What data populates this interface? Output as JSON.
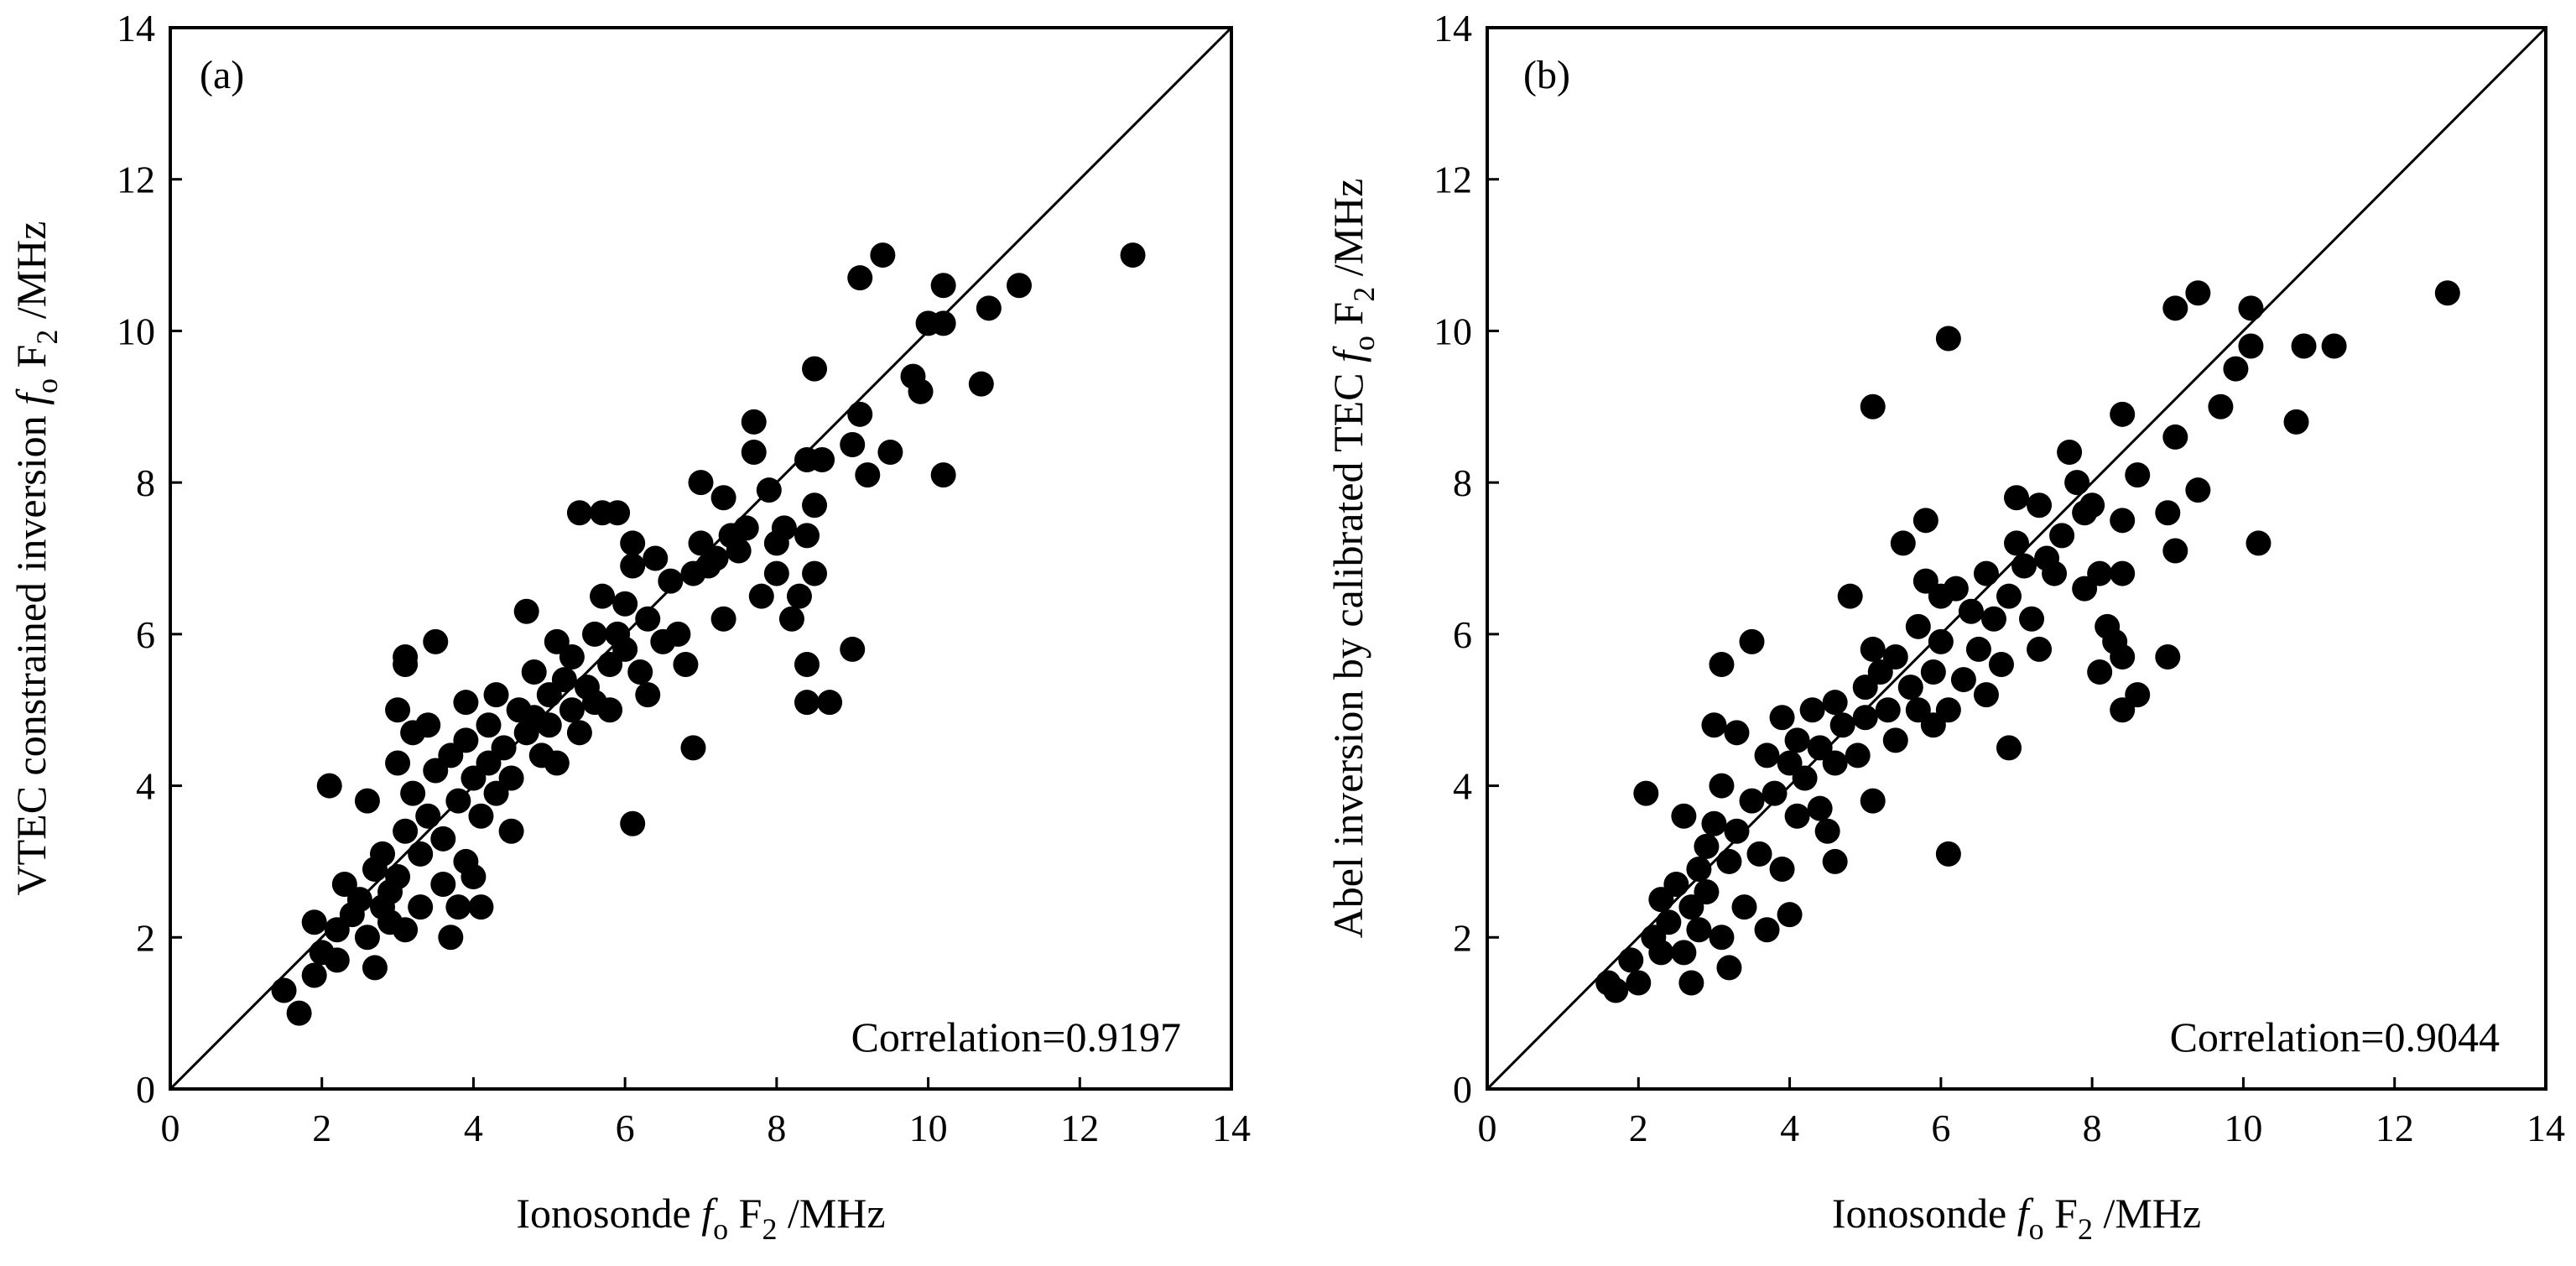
{
  "chart_data": [
    {
      "type": "scatter",
      "panel_label": "(a)",
      "annotation": "Correlation=0.9197",
      "xlabel": {
        "prefix": "Ionosonde ",
        "italic": "f",
        "sub1": "o",
        "mid": " F",
        "sub2": "2",
        "suffix": " /MHz"
      },
      "ylabel": {
        "prefix": "VTEC constrained inversion ",
        "italic": "f",
        "sub1": "o",
        "mid": " F",
        "sub2": "2",
        "suffix": " /MHz"
      },
      "xlim": [
        0,
        14
      ],
      "ylim": [
        0,
        14
      ],
      "xticks": [
        "0",
        "2",
        "4",
        "6",
        "8",
        "10",
        "12",
        "14"
      ],
      "yticks": [
        "0",
        "2",
        "4",
        "6",
        "8",
        "10",
        "12",
        "14"
      ],
      "reference_line": "y = x",
      "grid": false,
      "marker_color": "#000000",
      "points": [
        [
          1.5,
          1.3
        ],
        [
          1.7,
          1.0
        ],
        [
          1.9,
          1.5
        ],
        [
          1.9,
          2.2
        ],
        [
          2.0,
          1.8
        ],
        [
          2.1,
          4.0
        ],
        [
          2.2,
          1.7
        ],
        [
          2.2,
          2.1
        ],
        [
          2.3,
          2.7
        ],
        [
          2.4,
          2.3
        ],
        [
          2.5,
          2.5
        ],
        [
          2.6,
          2.0
        ],
        [
          2.6,
          3.8
        ],
        [
          2.7,
          1.6
        ],
        [
          2.7,
          2.9
        ],
        [
          2.8,
          2.4
        ],
        [
          2.8,
          3.1
        ],
        [
          2.9,
          2.2
        ],
        [
          2.9,
          2.6
        ],
        [
          3.0,
          4.3
        ],
        [
          3.0,
          5.0
        ],
        [
          3.0,
          2.8
        ],
        [
          3.1,
          5.6
        ],
        [
          3.1,
          5.7
        ],
        [
          3.1,
          3.4
        ],
        [
          3.1,
          2.1
        ],
        [
          3.2,
          4.7
        ],
        [
          3.2,
          3.9
        ],
        [
          3.3,
          3.1
        ],
        [
          3.3,
          2.4
        ],
        [
          3.4,
          4.8
        ],
        [
          3.4,
          3.6
        ],
        [
          3.5,
          5.9
        ],
        [
          3.5,
          4.2
        ],
        [
          3.6,
          3.3
        ],
        [
          3.6,
          2.7
        ],
        [
          3.7,
          4.4
        ],
        [
          3.7,
          2.0
        ],
        [
          3.8,
          3.8
        ],
        [
          3.8,
          2.4
        ],
        [
          3.9,
          5.1
        ],
        [
          3.9,
          4.6
        ],
        [
          3.9,
          3.0
        ],
        [
          4.0,
          4.1
        ],
        [
          4.0,
          2.8
        ],
        [
          4.1,
          3.6
        ],
        [
          4.1,
          2.4
        ],
        [
          4.2,
          4.8
        ],
        [
          4.2,
          4.3
        ],
        [
          4.3,
          3.9
        ],
        [
          4.3,
          5.2
        ],
        [
          4.4,
          4.5
        ],
        [
          4.5,
          4.1
        ],
        [
          4.5,
          3.4
        ],
        [
          4.6,
          5.0
        ],
        [
          4.7,
          4.7
        ],
        [
          4.7,
          6.3
        ],
        [
          4.8,
          4.9
        ],
        [
          4.8,
          5.5
        ],
        [
          4.9,
          4.4
        ],
        [
          5.0,
          5.2
        ],
        [
          5.0,
          4.8
        ],
        [
          5.1,
          5.9
        ],
        [
          5.1,
          4.3
        ],
        [
          5.2,
          5.4
        ],
        [
          5.3,
          5.0
        ],
        [
          5.3,
          5.7
        ],
        [
          5.4,
          7.6
        ],
        [
          5.4,
          4.7
        ],
        [
          5.5,
          5.3
        ],
        [
          5.6,
          5.1
        ],
        [
          5.6,
          6.0
        ],
        [
          5.7,
          7.6
        ],
        [
          5.7,
          6.5
        ],
        [
          5.8,
          5.6
        ],
        [
          5.8,
          5.0
        ],
        [
          5.9,
          7.6
        ],
        [
          5.9,
          6.0
        ],
        [
          6.0,
          5.8
        ],
        [
          6.0,
          6.4
        ],
        [
          6.1,
          7.2
        ],
        [
          6.1,
          6.9
        ],
        [
          6.1,
          3.5
        ],
        [
          6.2,
          5.5
        ],
        [
          6.3,
          6.2
        ],
        [
          6.3,
          5.2
        ],
        [
          6.4,
          7.0
        ],
        [
          6.5,
          5.9
        ],
        [
          6.6,
          6.7
        ],
        [
          6.7,
          6.0
        ],
        [
          6.8,
          5.6
        ],
        [
          6.9,
          6.8
        ],
        [
          6.9,
          4.5
        ],
        [
          7.0,
          8.0
        ],
        [
          7.0,
          7.2
        ],
        [
          7.1,
          6.9
        ],
        [
          7.2,
          7.0
        ],
        [
          7.3,
          7.8
        ],
        [
          7.3,
          6.2
        ],
        [
          7.4,
          7.3
        ],
        [
          7.5,
          7.1
        ],
        [
          7.6,
          7.4
        ],
        [
          7.7,
          8.8
        ],
        [
          7.7,
          8.4
        ],
        [
          7.8,
          6.5
        ],
        [
          7.9,
          7.9
        ],
        [
          8.0,
          7.2
        ],
        [
          8.0,
          6.8
        ],
        [
          8.1,
          7.4
        ],
        [
          8.2,
          6.2
        ],
        [
          8.3,
          6.5
        ],
        [
          8.4,
          8.3
        ],
        [
          8.4,
          7.3
        ],
        [
          8.4,
          5.1
        ],
        [
          8.4,
          5.6
        ],
        [
          8.5,
          9.5
        ],
        [
          8.5,
          7.7
        ],
        [
          8.5,
          6.8
        ],
        [
          8.6,
          8.3
        ],
        [
          8.7,
          5.1
        ],
        [
          9.0,
          8.5
        ],
        [
          9.0,
          5.8
        ],
        [
          9.1,
          8.9
        ],
        [
          9.1,
          10.7
        ],
        [
          9.2,
          8.1
        ],
        [
          9.4,
          11.0
        ],
        [
          9.5,
          8.4
        ],
        [
          9.8,
          9.4
        ],
        [
          9.9,
          9.2
        ],
        [
          10.0,
          10.1
        ],
        [
          10.2,
          10.1
        ],
        [
          10.2,
          8.1
        ],
        [
          10.2,
          10.6
        ],
        [
          10.7,
          9.3
        ],
        [
          10.8,
          10.3
        ],
        [
          11.2,
          10.6
        ],
        [
          12.7,
          11.0
        ]
      ]
    },
    {
      "type": "scatter",
      "panel_label": "(b)",
      "annotation": "Correlation=0.9044",
      "xlabel": {
        "prefix": "Ionosonde ",
        "italic": "f",
        "sub1": "o",
        "mid": " F",
        "sub2": "2",
        "suffix": " /MHz"
      },
      "ylabel": {
        "prefix": "Abel inversion by calibrated TEC ",
        "italic": "f",
        "sub1": "o",
        "mid": " F",
        "sub2": "2",
        "suffix": " /MHz"
      },
      "xlim": [
        0,
        14
      ],
      "ylim": [
        0,
        14
      ],
      "xticks": [
        "0",
        "2",
        "4",
        "6",
        "8",
        "10",
        "12",
        "14"
      ],
      "yticks": [
        "0",
        "2",
        "4",
        "6",
        "8",
        "10",
        "12",
        "14"
      ],
      "reference_line": "y = x",
      "grid": false,
      "marker_color": "#000000",
      "points": [
        [
          1.6,
          1.4
        ],
        [
          1.7,
          1.3
        ],
        [
          1.9,
          1.7
        ],
        [
          2.0,
          1.4
        ],
        [
          2.1,
          3.9
        ],
        [
          2.2,
          2.0
        ],
        [
          2.3,
          1.8
        ],
        [
          2.3,
          2.5
        ],
        [
          2.4,
          2.2
        ],
        [
          2.5,
          2.7
        ],
        [
          2.6,
          3.6
        ],
        [
          2.6,
          1.8
        ],
        [
          2.7,
          1.4
        ],
        [
          2.7,
          2.4
        ],
        [
          2.8,
          2.9
        ],
        [
          2.8,
          2.1
        ],
        [
          2.9,
          3.2
        ],
        [
          2.9,
          2.6
        ],
        [
          3.0,
          4.8
        ],
        [
          3.0,
          3.5
        ],
        [
          3.1,
          5.6
        ],
        [
          3.1,
          4.0
        ],
        [
          3.1,
          2.0
        ],
        [
          3.2,
          1.6
        ],
        [
          3.2,
          3.0
        ],
        [
          3.3,
          4.7
        ],
        [
          3.3,
          3.4
        ],
        [
          3.4,
          2.4
        ],
        [
          3.5,
          5.9
        ],
        [
          3.5,
          3.8
        ],
        [
          3.6,
          3.1
        ],
        [
          3.7,
          2.1
        ],
        [
          3.7,
          4.4
        ],
        [
          3.8,
          3.9
        ],
        [
          3.9,
          2.9
        ],
        [
          3.9,
          4.9
        ],
        [
          4.0,
          4.3
        ],
        [
          4.0,
          2.3
        ],
        [
          4.1,
          3.6
        ],
        [
          4.1,
          4.6
        ],
        [
          4.2,
          4.1
        ],
        [
          4.3,
          5.0
        ],
        [
          4.4,
          4.5
        ],
        [
          4.4,
          3.7
        ],
        [
          4.5,
          3.4
        ],
        [
          4.6,
          5.1
        ],
        [
          4.6,
          4.3
        ],
        [
          4.6,
          3.0
        ],
        [
          4.7,
          4.8
        ],
        [
          4.8,
          6.5
        ],
        [
          4.9,
          4.4
        ],
        [
          5.0,
          5.3
        ],
        [
          5.0,
          4.9
        ],
        [
          5.1,
          9.0
        ],
        [
          5.1,
          5.8
        ],
        [
          5.1,
          3.8
        ],
        [
          5.2,
          5.5
        ],
        [
          5.3,
          5.0
        ],
        [
          5.4,
          5.7
        ],
        [
          5.4,
          4.6
        ],
        [
          5.5,
          7.2
        ],
        [
          5.6,
          5.3
        ],
        [
          5.7,
          6.1
        ],
        [
          5.7,
          5.0
        ],
        [
          5.8,
          7.5
        ],
        [
          5.8,
          6.7
        ],
        [
          5.9,
          5.5
        ],
        [
          5.9,
          4.8
        ],
        [
          6.0,
          6.5
        ],
        [
          6.0,
          5.9
        ],
        [
          6.1,
          5.0
        ],
        [
          6.1,
          9.9
        ],
        [
          6.1,
          3.1
        ],
        [
          6.2,
          6.6
        ],
        [
          6.3,
          5.4
        ],
        [
          6.4,
          6.3
        ],
        [
          6.5,
          5.8
        ],
        [
          6.6,
          5.2
        ],
        [
          6.6,
          6.8
        ],
        [
          6.7,
          6.2
        ],
        [
          6.8,
          5.6
        ],
        [
          6.9,
          6.5
        ],
        [
          6.9,
          4.5
        ],
        [
          7.0,
          7.8
        ],
        [
          7.0,
          7.2
        ],
        [
          7.1,
          6.9
        ],
        [
          7.2,
          6.2
        ],
        [
          7.3,
          7.7
        ],
        [
          7.3,
          5.8
        ],
        [
          7.4,
          7.0
        ],
        [
          7.5,
          6.8
        ],
        [
          7.6,
          7.3
        ],
        [
          7.7,
          8.4
        ],
        [
          7.8,
          8.0
        ],
        [
          7.9,
          7.6
        ],
        [
          7.9,
          6.6
        ],
        [
          8.0,
          7.7
        ],
        [
          8.1,
          6.8
        ],
        [
          8.1,
          5.5
        ],
        [
          8.2,
          6.1
        ],
        [
          8.3,
          5.9
        ],
        [
          8.4,
          8.9
        ],
        [
          8.4,
          7.5
        ],
        [
          8.4,
          6.8
        ],
        [
          8.4,
          5.7
        ],
        [
          8.4,
          5.0
        ],
        [
          8.6,
          8.1
        ],
        [
          8.6,
          5.2
        ],
        [
          9.0,
          7.6
        ],
        [
          9.0,
          5.7
        ],
        [
          9.1,
          10.3
        ],
        [
          9.1,
          8.6
        ],
        [
          9.1,
          7.1
        ],
        [
          9.4,
          10.5
        ],
        [
          9.4,
          7.9
        ],
        [
          9.7,
          9.0
        ],
        [
          9.9,
          9.5
        ],
        [
          10.1,
          9.8
        ],
        [
          10.1,
          10.3
        ],
        [
          10.2,
          7.2
        ],
        [
          10.7,
          8.8
        ],
        [
          10.8,
          9.8
        ],
        [
          11.2,
          9.8
        ],
        [
          12.7,
          10.5
        ]
      ]
    }
  ]
}
